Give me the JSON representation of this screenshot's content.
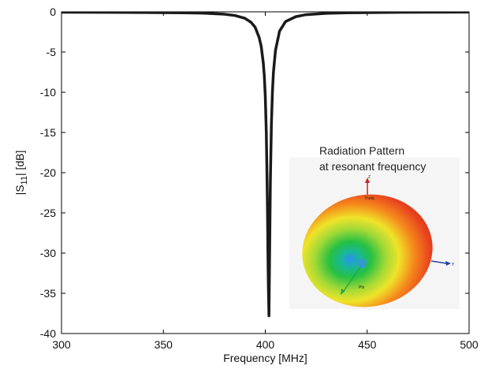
{
  "chart_data": {
    "type": "line",
    "xlabel": "Frequency [MHz]",
    "ylabel": {
      "prefix": "|S",
      "subscript": "11",
      "suffix": "| [dB]"
    },
    "xlim": [
      300,
      500
    ],
    "ylim": [
      -40,
      0
    ],
    "xticks": [
      300,
      350,
      400,
      450,
      500
    ],
    "yticks": [
      0,
      -5,
      -10,
      -15,
      -20,
      -25,
      -30,
      -35,
      -40
    ],
    "grid": false,
    "series": [
      {
        "color": "#1a1a1a",
        "x": [
          300,
          320,
          340,
          360,
          370,
          380,
          385,
          390,
          393,
          395,
          397,
          398,
          399,
          399.5,
          400,
          400.5,
          401,
          401.3,
          401.5,
          401.8,
          402,
          402.5,
          403,
          403.5,
          404,
          405,
          407,
          410,
          415,
          420,
          430,
          440,
          460,
          480,
          500
        ],
        "y": [
          -0.05,
          -0.06,
          -0.08,
          -0.12,
          -0.17,
          -0.3,
          -0.45,
          -0.8,
          -1.3,
          -1.9,
          -3.2,
          -4.3,
          -6.3,
          -7.9,
          -10.5,
          -15,
          -23,
          -30,
          -34,
          -37.8,
          -33,
          -21,
          -14,
          -10,
          -7.5,
          -4.8,
          -2.4,
          -1.2,
          -0.6,
          -0.35,
          -0.18,
          -0.12,
          -0.07,
          -0.05,
          -0.04
        ]
      }
    ],
    "annotation": {
      "line1": "Radiation Pattern",
      "line2": "at resonant frequency",
      "inset_axes": {
        "z": "Z",
        "y": "Y",
        "theta": "Theta",
        "phi": "Phi"
      }
    }
  }
}
